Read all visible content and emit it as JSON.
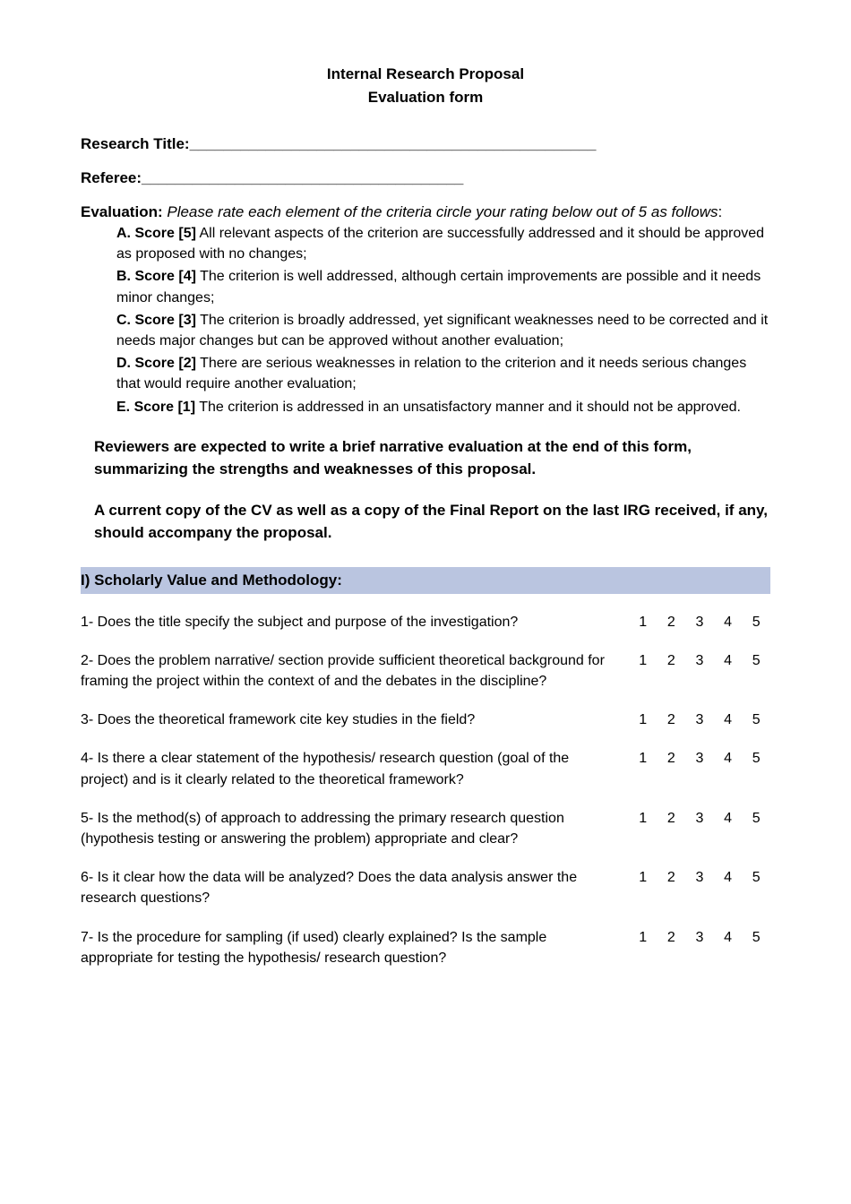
{
  "header": {
    "line1": "Internal Research Proposal",
    "line2": "Evaluation form"
  },
  "fields": {
    "research_title_label": "Research Title:",
    "research_title_line": "________________________________________________",
    "referee_label": "Referee:",
    "referee_line": "______________________________________"
  },
  "evaluation": {
    "label": "Evaluation:",
    "instruction": "Please rate each element of the criteria circle your rating below out of 5 as follows",
    "colon": ":",
    "criteria": [
      {
        "label": "A. Score [5]",
        "text": " All relevant aspects of the criterion are successfully addressed and it should be approved as proposed with no changes;"
      },
      {
        "label": "B. Score [4]",
        "text": " The criterion is well addressed, although certain improvements are possible and it needs minor changes;"
      },
      {
        "label": "C. Score [3]",
        "text": " The criterion is broadly addressed, yet significant weaknesses need to be corrected and it needs major changes but can be approved without another evaluation;"
      },
      {
        "label": "D. Score [2]",
        "text": " There are serious weaknesses in relation to the criterion and it needs serious changes that would require another evaluation;"
      },
      {
        "label": "E. Score [1]",
        "text": " The criterion is addressed in an unsatisfactory manner and it should not be  approved."
      }
    ]
  },
  "paragraphs": {
    "reviewers": "Reviewers are expected to write a brief narrative evaluation at the end of this form, summarizing the strengths and weaknesses of this proposal.",
    "cv_copy": "A current copy of the CV as well as a copy of the Final Report on the last IRG received, if any, should accompany the proposal."
  },
  "section": {
    "header": "I) Scholarly Value and Methodology:",
    "items": [
      {
        "text": "1- Does the title specify the subject and purpose of the investigation?",
        "scores": [
          "1",
          "2",
          "3",
          "4",
          "5"
        ]
      },
      {
        "text": "2- Does the problem narrative/ section provide sufficient theoretical background for framing the project within the context of and the debates in the discipline?",
        "scores": [
          "1",
          "2",
          "3",
          "4",
          "5"
        ]
      },
      {
        "text": "3- Does the theoretical framework cite key studies in the field?",
        "scores": [
          "1",
          "2",
          "3",
          "4",
          "5"
        ]
      },
      {
        "text": "4- Is there a clear statement of the hypothesis/ research question (goal of the project) and is it clearly related to the theoretical framework?",
        "scores": [
          "1",
          "2",
          "3",
          "4",
          "5"
        ]
      },
      {
        "text": "5- Is the method(s) of approach to addressing the primary research question (hypothesis testing or answering the problem) appropriate and clear?",
        "scores": [
          "1",
          "2",
          "3",
          "4",
          "5"
        ]
      },
      {
        "text": "6- Is it clear how the data will be analyzed? Does the data analysis answer the research questions?",
        "scores": [
          "1",
          "2",
          "3",
          "4",
          "5"
        ]
      },
      {
        "text": "7- Is the procedure for sampling (if used) clearly explained? Is the sample appropriate for testing the hypothesis/ research question?",
        "scores": [
          "1",
          "2",
          "3",
          "4",
          "5"
        ]
      }
    ]
  },
  "colors": {
    "text": "#000000",
    "background": "#ffffff",
    "section_bg": "#bac5e0"
  }
}
